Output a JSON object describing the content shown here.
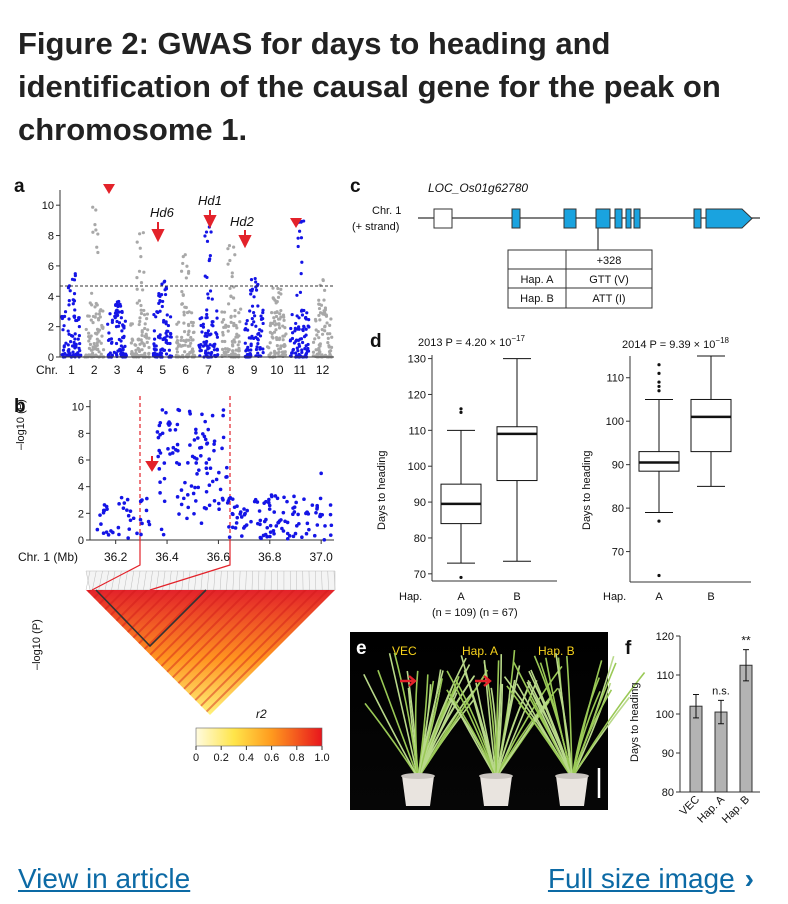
{
  "caption": "Figure 2: GWAS for days to heading and identification of the causal gene for the peak on chromosome 1.",
  "links": {
    "view_article": "View in article",
    "full_size": "Full size image"
  },
  "panels": {
    "a": {
      "label": "a",
      "ylabel": "–log10 (P)",
      "yticks": [
        "0",
        "2",
        "4",
        "6",
        "8",
        "10"
      ],
      "chrom_label": "Chr.",
      "chromosomes": [
        "1",
        "2",
        "3",
        "4",
        "5",
        "6",
        "7",
        "8",
        "9",
        "10",
        "11",
        "12"
      ],
      "annotations": [
        "Hd6",
        "Hd1",
        "Hd2"
      ]
    },
    "b": {
      "label": "b",
      "ylabel": "–log10 (P)",
      "yticks": [
        "0",
        "2",
        "4",
        "6",
        "8",
        "10"
      ],
      "xaxis_label": "Chr. 1 (Mb)",
      "xticks": [
        "36.2",
        "36.4",
        "36.6",
        "36.8",
        "37.0"
      ],
      "legend_title": "r2",
      "legend_ticks": [
        "0",
        "0.2",
        "0.4",
        "0.6",
        "0.8",
        "1.0"
      ]
    },
    "c": {
      "label": "c",
      "gene": "LOC_Os01g62780",
      "chr_line1": "Chr. 1",
      "chr_line2": "(+ strand)",
      "table": {
        "header": [
          "",
          "+328"
        ],
        "rows": [
          [
            "Hap. A",
            "GTT (V)"
          ],
          [
            "Hap. B",
            "ATT (I)"
          ]
        ]
      }
    },
    "d": {
      "label": "d",
      "left_title": "2013 P = 4.20 × 10",
      "left_exp": "−17",
      "right_title": "2014 P = 9.39 × 10",
      "right_exp": "−18",
      "ylabel": "Days to heading",
      "left_yticks": [
        "70",
        "80",
        "90",
        "100",
        "110",
        "120",
        "130"
      ],
      "right_yticks": [
        "70",
        "80",
        "90",
        "100",
        "110"
      ],
      "hap_label": "Hap.",
      "groups": [
        "A",
        "B"
      ],
      "n_labels": "(n = 109) (n = 67)"
    },
    "e": {
      "label": "e",
      "plants": [
        "VEC",
        "Hap. A",
        "Hap. B"
      ]
    },
    "f": {
      "label": "f",
      "ylabel": "Days to heading",
      "yticks": [
        "80",
        "90",
        "100",
        "110",
        "120"
      ],
      "categories": [
        "VEC",
        "Hap. A",
        "Hap. B"
      ],
      "sig": [
        "n.s.",
        "**"
      ]
    }
  },
  "chart_data": [
    {
      "type": "scatter",
      "panel": "a",
      "ylabel": "–log10 (P)",
      "ylim": [
        0,
        11
      ],
      "categories": [
        "1",
        "2",
        "3",
        "4",
        "5",
        "6",
        "7",
        "8",
        "9",
        "10",
        "11",
        "12"
      ]
    },
    {
      "type": "scatter",
      "panel": "b",
      "ylabel": "–log10 (P)",
      "xlabel": "Chr. 1 (Mb)",
      "xlim": [
        36.1,
        37.05
      ],
      "ylim": [
        0,
        10.5
      ]
    },
    {
      "type": "box",
      "panel": "d-2013",
      "ylabel": "Days to heading",
      "ylim": [
        68,
        131
      ],
      "categories": [
        "A",
        "B"
      ],
      "boxes": [
        {
          "min": 73,
          "q1": 84,
          "median": 89.5,
          "q3": 95,
          "max": 110,
          "outliers": [
            69,
            115,
            116
          ]
        },
        {
          "min": 73.5,
          "q1": 96,
          "median": 109,
          "q3": 111,
          "max": 130,
          "outliers": []
        }
      ]
    },
    {
      "type": "box",
      "panel": "d-2014",
      "ylabel": "Days to heading",
      "ylim": [
        63,
        115
      ],
      "categories": [
        "A",
        "B"
      ],
      "boxes": [
        {
          "min": 79,
          "q1": 88.5,
          "median": 90.5,
          "q3": 93,
          "max": 105,
          "outliers": [
            64.5,
            77,
            107,
            108,
            109,
            111,
            113
          ]
        },
        {
          "min": 85,
          "q1": 93,
          "median": 101,
          "q3": 105,
          "max": 115,
          "outliers": []
        }
      ]
    },
    {
      "type": "bar",
      "panel": "f",
      "ylabel": "Days to heading",
      "ylim": [
        80,
        120
      ],
      "categories": [
        "VEC",
        "Hap. A",
        "Hap. B"
      ],
      "values": [
        102,
        100.5,
        112.5
      ],
      "errors": [
        3,
        3,
        4
      ]
    }
  ]
}
